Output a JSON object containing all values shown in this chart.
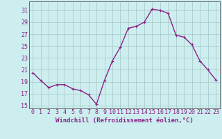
{
  "x": [
    0,
    1,
    2,
    3,
    4,
    5,
    6,
    7,
    8,
    9,
    10,
    11,
    12,
    13,
    14,
    15,
    16,
    17,
    18,
    19,
    20,
    21,
    22,
    23
  ],
  "y": [
    20.5,
    19.2,
    18.0,
    18.5,
    18.5,
    17.8,
    17.5,
    16.8,
    15.2,
    19.2,
    22.5,
    24.8,
    28.0,
    28.3,
    29.0,
    31.2,
    31.0,
    30.5,
    26.8,
    26.5,
    25.2,
    22.5,
    21.0,
    19.3
  ],
  "line_color": "#882288",
  "marker": "+",
  "marker_size": 3,
  "marker_linewidth": 0.8,
  "bg_color": "#cceeee",
  "grid_color": "#aacccc",
  "xlabel": "Windchill (Refroidissement éolien,°C)",
  "xlabel_fontsize": 6.5,
  "yticks": [
    15,
    17,
    19,
    21,
    23,
    25,
    27,
    29,
    31
  ],
  "xtick_labels": [
    "0",
    "1",
    "2",
    "3",
    "4",
    "5",
    "6",
    "7",
    "8",
    "9",
    "10",
    "11",
    "12",
    "13",
    "14",
    "15",
    "16",
    "17",
    "18",
    "19",
    "20",
    "21",
    "22",
    "23"
  ],
  "ylim": [
    14.5,
    32.5
  ],
  "xlim": [
    -0.5,
    23.5
  ],
  "tick_color": "#882288",
  "tick_fontsize": 6,
  "axis_color": "#666666",
  "line_width": 1.0
}
